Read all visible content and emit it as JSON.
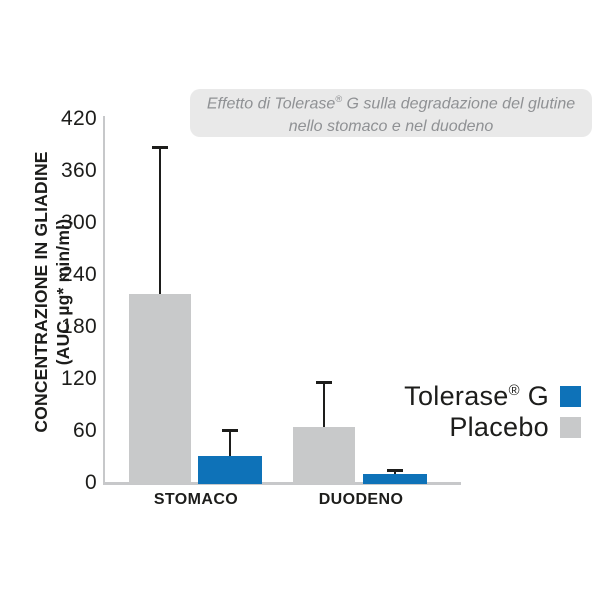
{
  "header": {
    "title_line1_pre": "Effetto di Tolerase",
    "title_line1_reg": "®",
    "title_line1_post": " G sulla degradazione del glutine",
    "title_line2": "nello stomaco e nel duodeno"
  },
  "y_axis": {
    "label_line1": "CONCENTRAZIONE IN GLIADINE",
    "label_line2": "(AUC µg* min/ml)"
  },
  "legend": {
    "tolerase_pre": "Tolerase",
    "tolerase_reg": "®",
    "tolerase_post": " G",
    "placebo": "Placebo"
  },
  "colors": {
    "tolerase_blue": "#0e72b8",
    "placebo_gray": "#c8c9ca",
    "axis_gray": "#c7c8ca",
    "error_black": "#1d1d1b",
    "bubble_bg": "#e9e9e9",
    "bubble_text": "#8f9194"
  },
  "chart_data": {
    "type": "bar",
    "title": "Effetto di Tolerase® G sulla degradazione del glutine nello stomaco e nel duodeno",
    "categories": [
      "STOMACO",
      "DUODENO"
    ],
    "series": [
      {
        "name": "Placebo",
        "color": "#c8c9ca",
        "values": [
          218,
          65
        ],
        "upper_errors": [
          170,
          52
        ]
      },
      {
        "name": "Tolerase® G",
        "color": "#0e72b8",
        "values": [
          31,
          10
        ],
        "upper_errors": [
          30,
          5
        ]
      }
    ],
    "ylabel": "CONCENTRAZIONE IN GLIADINE (AUC µg* min/ml)",
    "ylim": [
      0,
      420
    ],
    "ytick_step": 60,
    "grid": false,
    "error_bars": "upper only",
    "legend_position": "right-middle",
    "group_order": "Placebo left, Tolerase® G right within each category"
  }
}
